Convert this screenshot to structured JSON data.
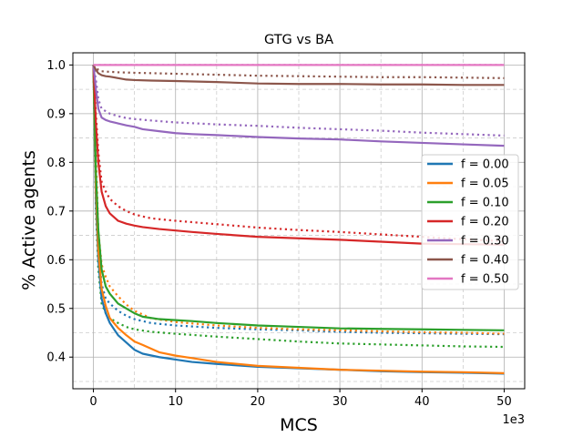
{
  "chart_data": {
    "type": "line",
    "title": "GTG vs BA",
    "xlabel": "MCS",
    "ylabel": "% Active agents",
    "x_offset_label": "1e3",
    "xlim": [
      -2.5,
      52.5
    ],
    "ylim": [
      0.335,
      1.025
    ],
    "x_ticks": [
      0,
      10,
      20,
      30,
      40,
      50
    ],
    "x_tick_labels": [
      "0",
      "10",
      "20",
      "30",
      "40",
      "50"
    ],
    "y_ticks": [
      0.4,
      0.5,
      0.6,
      0.7,
      0.8,
      0.9,
      1.0
    ],
    "y_tick_labels": [
      "0.4",
      "0.5",
      "0.6",
      "0.7",
      "0.8",
      "0.9",
      "1.0"
    ],
    "major_grid": true,
    "minor_grid": true,
    "legend_position": "center-right",
    "line_styles": {
      "solid": "one set of runs per f",
      "dotted": "second set of runs per f"
    },
    "series": [
      {
        "name": "f = 0.00",
        "color": "#1f77b4",
        "solid": {
          "x": [
            0,
            0.3,
            0.6,
            1,
            1.5,
            2,
            3,
            4,
            5,
            6,
            8,
            10,
            12,
            15,
            20,
            25,
            30,
            35,
            40,
            45,
            50
          ],
          "y": [
            1.0,
            0.72,
            0.6,
            0.52,
            0.49,
            0.47,
            0.445,
            0.43,
            0.415,
            0.407,
            0.4,
            0.395,
            0.39,
            0.386,
            0.38,
            0.377,
            0.374,
            0.371,
            0.369,
            0.368,
            0.366
          ]
        },
        "dotted": {
          "x": [
            0,
            0.3,
            0.6,
            1,
            1.5,
            2,
            3,
            4,
            5,
            7,
            10,
            15,
            20,
            25,
            30,
            35,
            40,
            45,
            50
          ],
          "y": [
            1.0,
            0.8,
            0.62,
            0.55,
            0.52,
            0.51,
            0.495,
            0.485,
            0.478,
            0.47,
            0.465,
            0.46,
            0.457,
            0.455,
            0.452,
            0.45,
            0.449,
            0.448,
            0.447
          ]
        }
      },
      {
        "name": "f = 0.05",
        "color": "#ff7f0e",
        "solid": {
          "x": [
            0,
            0.3,
            0.6,
            1,
            1.5,
            2,
            3,
            4,
            5,
            6,
            8,
            10,
            12,
            15,
            20,
            25,
            30,
            35,
            40,
            45,
            50
          ],
          "y": [
            1.0,
            0.75,
            0.62,
            0.54,
            0.505,
            0.48,
            0.46,
            0.445,
            0.432,
            0.425,
            0.41,
            0.403,
            0.398,
            0.39,
            0.382,
            0.378,
            0.374,
            0.372,
            0.37,
            0.369,
            0.367
          ]
        },
        "dotted": {
          "x": [
            0,
            0.3,
            0.6,
            1,
            1.5,
            2,
            3,
            4,
            5,
            7,
            10,
            15,
            20,
            25,
            30,
            35,
            40,
            45,
            50
          ],
          "y": [
            1.0,
            0.82,
            0.66,
            0.59,
            0.565,
            0.545,
            0.525,
            0.508,
            0.495,
            0.48,
            0.472,
            0.465,
            0.46,
            0.457,
            0.455,
            0.453,
            0.451,
            0.45,
            0.448
          ]
        }
      },
      {
        "name": "f = 0.10",
        "color": "#2ca02c",
        "solid": {
          "x": [
            0,
            0.3,
            0.6,
            1,
            1.5,
            2,
            3,
            4,
            5,
            6,
            8,
            10,
            12,
            15,
            20,
            25,
            30,
            35,
            40,
            45,
            50
          ],
          "y": [
            1.0,
            0.78,
            0.66,
            0.58,
            0.545,
            0.53,
            0.51,
            0.5,
            0.49,
            0.483,
            0.478,
            0.476,
            0.474,
            0.47,
            0.465,
            0.462,
            0.459,
            0.458,
            0.457,
            0.456,
            0.455
          ]
        },
        "dotted": {
          "x": [
            0,
            0.3,
            0.6,
            1,
            1.5,
            2,
            3,
            4,
            5,
            7,
            10,
            15,
            20,
            25,
            30,
            35,
            40,
            45,
            50
          ],
          "y": [
            1.0,
            0.7,
            0.58,
            0.51,
            0.49,
            0.48,
            0.47,
            0.462,
            0.457,
            0.452,
            0.448,
            0.442,
            0.437,
            0.432,
            0.428,
            0.426,
            0.424,
            0.422,
            0.421
          ]
        }
      },
      {
        "name": "f = 0.20",
        "color": "#d62728",
        "solid": {
          "x": [
            0,
            0.3,
            0.6,
            1,
            1.5,
            2,
            3,
            4,
            5,
            6,
            8,
            10,
            12,
            15,
            20,
            25,
            30,
            35,
            40,
            45,
            50
          ],
          "y": [
            1.0,
            0.88,
            0.8,
            0.74,
            0.71,
            0.695,
            0.68,
            0.674,
            0.67,
            0.667,
            0.663,
            0.66,
            0.657,
            0.653,
            0.647,
            0.644,
            0.641,
            0.637,
            0.633,
            0.632,
            0.631
          ]
        },
        "dotted": {
          "x": [
            0,
            0.3,
            0.6,
            1,
            1.5,
            2,
            3,
            4,
            5,
            7,
            10,
            15,
            20,
            25,
            30,
            35,
            40,
            45,
            50
          ],
          "y": [
            1.0,
            0.9,
            0.82,
            0.76,
            0.74,
            0.725,
            0.71,
            0.7,
            0.693,
            0.685,
            0.68,
            0.673,
            0.666,
            0.661,
            0.657,
            0.652,
            0.647,
            0.642,
            0.638
          ]
        }
      },
      {
        "name": "f = 0.30",
        "color": "#9467bd",
        "solid": {
          "x": [
            0,
            0.3,
            0.6,
            1,
            1.5,
            2,
            3,
            4,
            5,
            6,
            8,
            10,
            12,
            15,
            20,
            25,
            30,
            35,
            40,
            45,
            50
          ],
          "y": [
            1.0,
            0.95,
            0.91,
            0.892,
            0.887,
            0.884,
            0.88,
            0.876,
            0.873,
            0.868,
            0.864,
            0.86,
            0.858,
            0.856,
            0.852,
            0.849,
            0.847,
            0.843,
            0.84,
            0.837,
            0.834
          ]
        },
        "dotted": {
          "x": [
            0,
            0.3,
            0.6,
            1,
            1.5,
            2,
            3,
            4,
            5,
            7,
            10,
            15,
            20,
            25,
            30,
            35,
            40,
            45,
            50
          ],
          "y": [
            1.0,
            0.97,
            0.93,
            0.91,
            0.905,
            0.9,
            0.895,
            0.891,
            0.889,
            0.886,
            0.882,
            0.878,
            0.875,
            0.871,
            0.868,
            0.865,
            0.861,
            0.858,
            0.855
          ]
        }
      },
      {
        "name": "f = 0.40",
        "color": "#8c564b",
        "solid": {
          "x": [
            0,
            0.3,
            0.6,
            1,
            1.5,
            2,
            3,
            4,
            5,
            7,
            10,
            15,
            20,
            25,
            30,
            35,
            40,
            45,
            50
          ],
          "y": [
            1.0,
            0.99,
            0.983,
            0.979,
            0.977,
            0.976,
            0.973,
            0.97,
            0.969,
            0.968,
            0.967,
            0.965,
            0.962,
            0.961,
            0.961,
            0.96,
            0.96,
            0.959,
            0.959
          ]
        },
        "dotted": {
          "x": [
            0,
            0.3,
            0.6,
            1,
            2,
            3,
            5,
            10,
            15,
            20,
            25,
            30,
            35,
            40,
            45,
            50
          ],
          "y": [
            1.0,
            0.995,
            0.99,
            0.987,
            0.986,
            0.985,
            0.984,
            0.982,
            0.98,
            0.978,
            0.977,
            0.976,
            0.975,
            0.975,
            0.974,
            0.973
          ]
        }
      },
      {
        "name": "f = 0.50",
        "color": "#e377c2",
        "solid": {
          "x": [
            0,
            50
          ],
          "y": [
            1.0,
            1.0
          ]
        },
        "dotted": {
          "x": [
            0,
            50
          ],
          "y": [
            1.0,
            1.0
          ]
        }
      }
    ]
  }
}
